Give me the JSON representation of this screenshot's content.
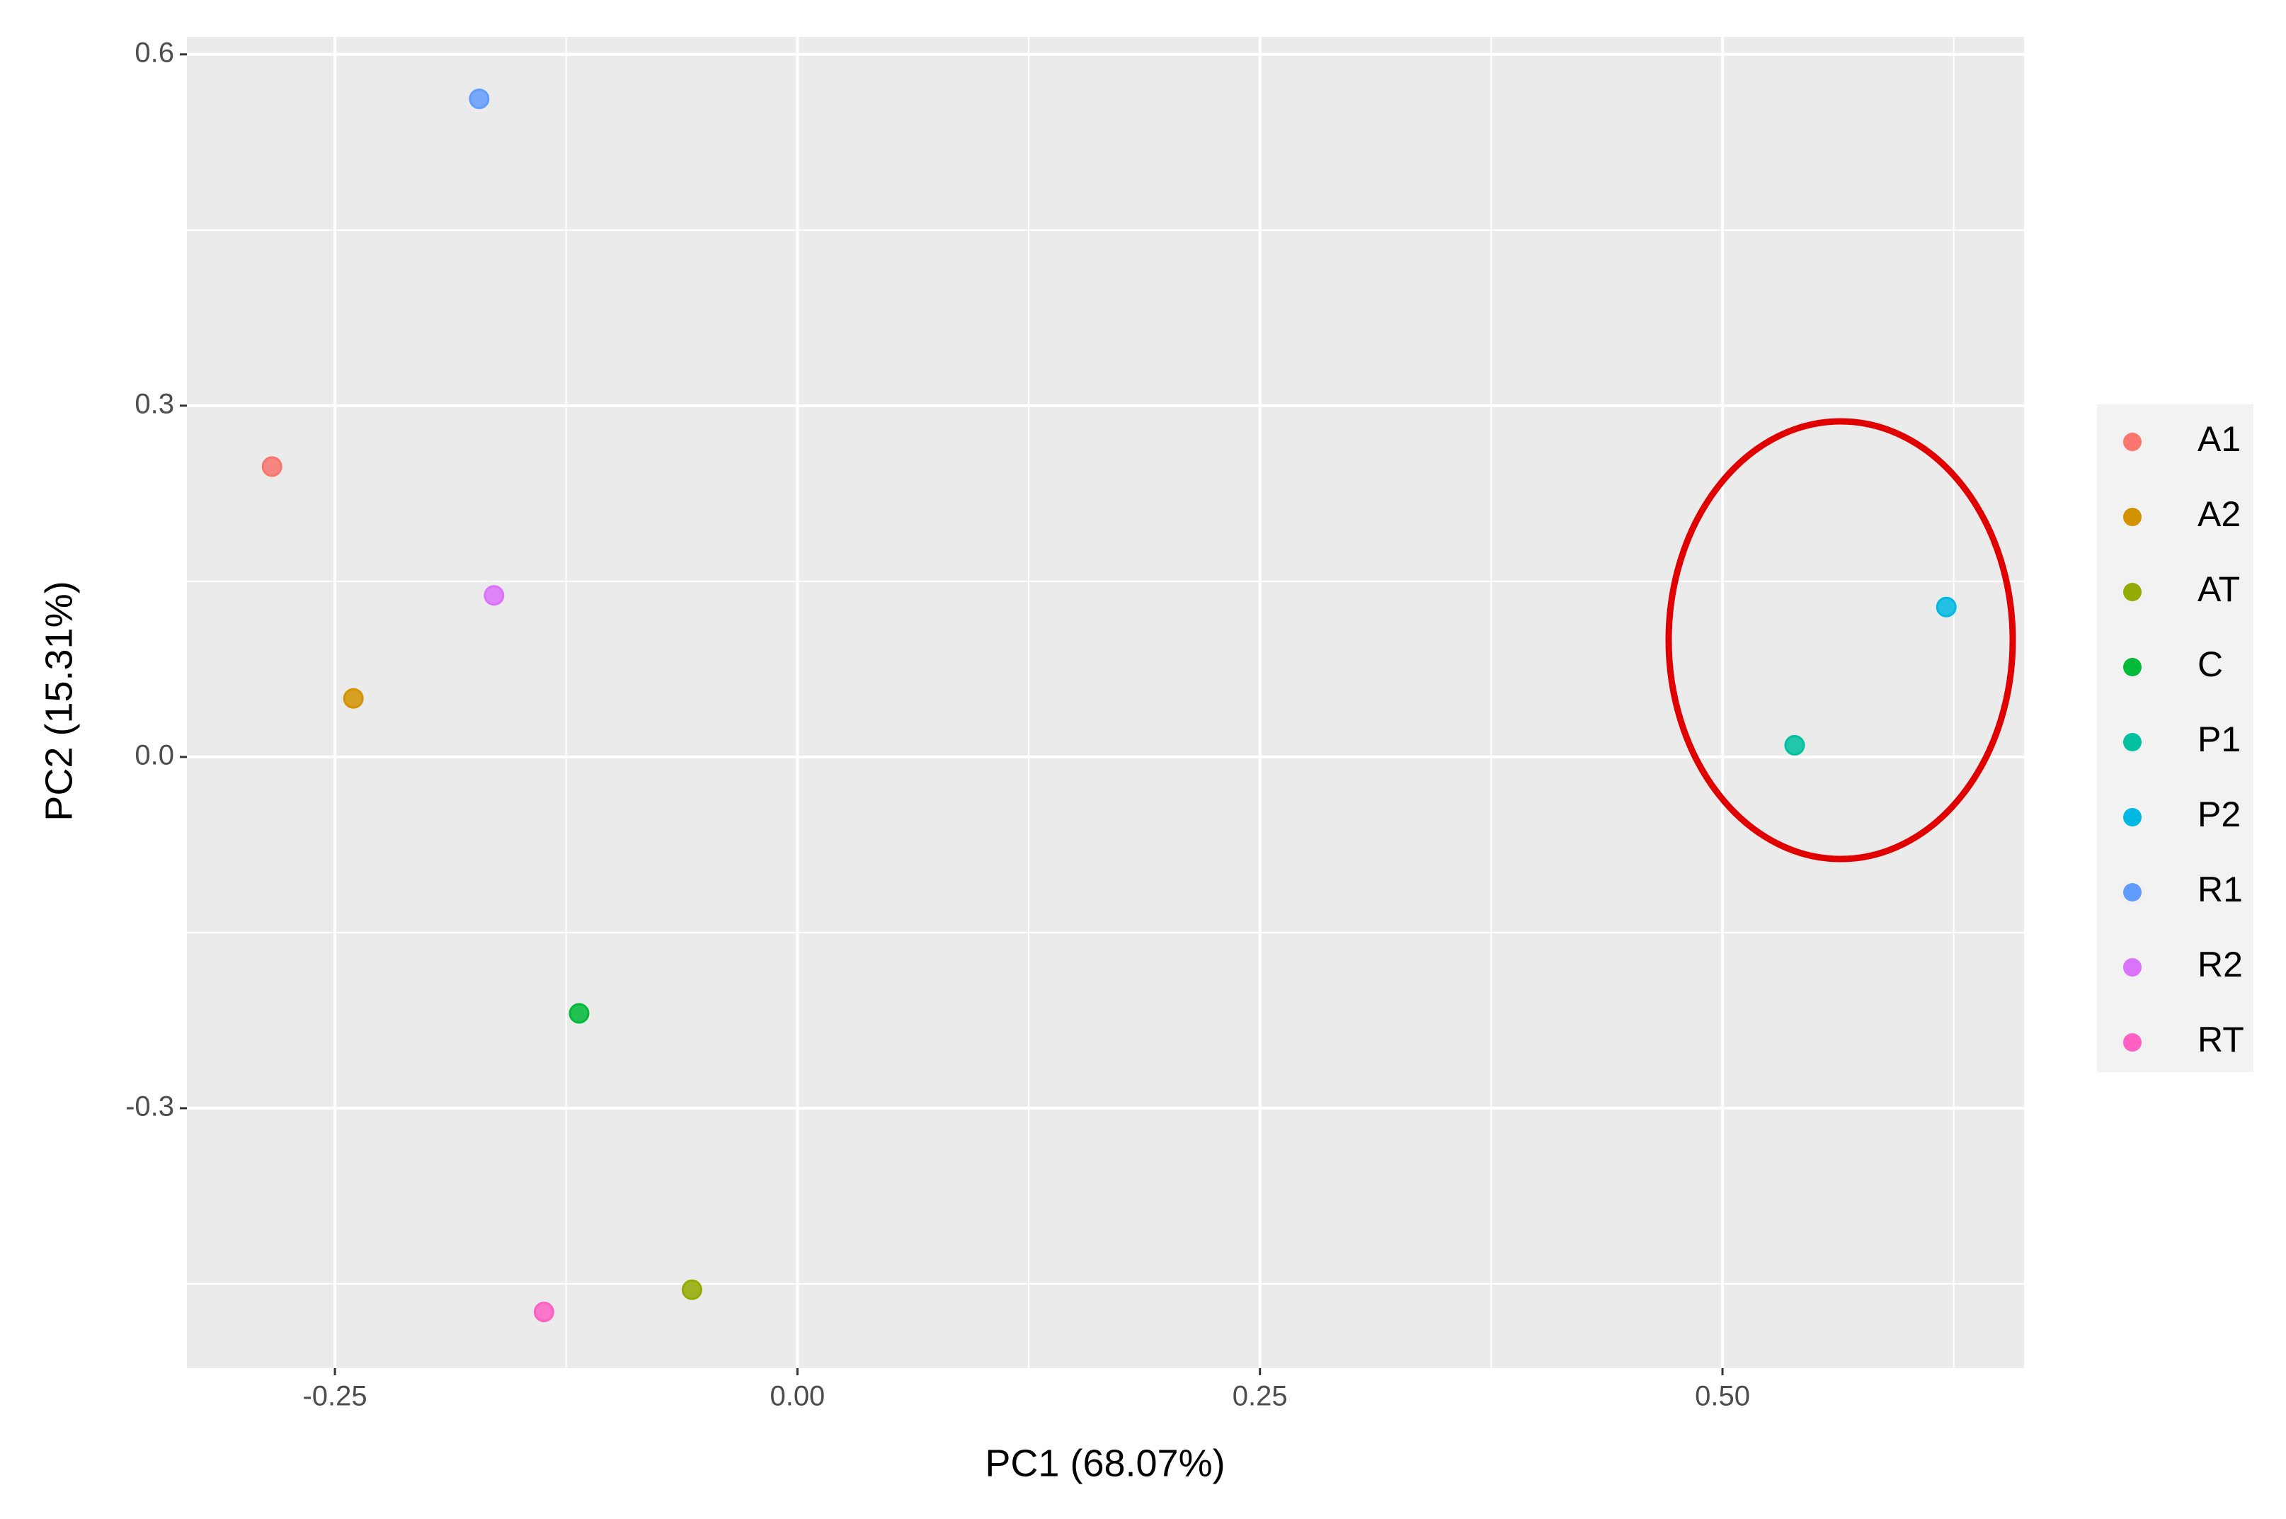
{
  "chart_data": {
    "type": "scatter",
    "x_label": "PC1 (68.07%)",
    "y_label": "PC2 (15.31%)",
    "xlim": [
      -0.33,
      0.663
    ],
    "ylim": [
      -0.522,
      0.615
    ],
    "xticks": [
      -0.25,
      {
        "value": 0,
        "label": "0.00"
      },
      0.25,
      {
        "value": 0.5,
        "label": "0.50"
      }
    ],
    "yticks": [
      -0.3,
      {
        "value": 0,
        "label": "0.0"
      },
      0.3,
      0.6
    ],
    "grid": true,
    "minor_grid": true,
    "legend": "right",
    "series": [
      {
        "name": "A1",
        "color": "#F8766D",
        "x": [
          -0.284
        ],
        "values": [
          0.248
        ]
      },
      {
        "name": "A2",
        "color": "#D39200",
        "x": [
          -0.24
        ],
        "values": [
          0.05
        ]
      },
      {
        "name": "AT",
        "color": "#93AA00",
        "x": [
          -0.057
        ],
        "values": [
          -0.455
        ]
      },
      {
        "name": "C",
        "color": "#00BA38",
        "x": [
          -0.118
        ],
        "values": [
          -0.219
        ]
      },
      {
        "name": "P1",
        "color": "#00C19F",
        "x": [
          0.539
        ],
        "values": [
          0.01
        ]
      },
      {
        "name": "P2",
        "color": "#00B9E3",
        "x": [
          0.621
        ],
        "values": [
          0.128
        ]
      },
      {
        "name": "R1",
        "color": "#619CFF",
        "x": [
          -0.172
        ],
        "values": [
          0.562
        ]
      },
      {
        "name": "R2",
        "color": "#DB72FB",
        "x": [
          -0.164
        ],
        "values": [
          0.138
        ]
      },
      {
        "name": "RT",
        "color": "#FF61C3",
        "x": [
          -0.137
        ],
        "values": [
          -0.474
        ]
      }
    ]
  }
}
